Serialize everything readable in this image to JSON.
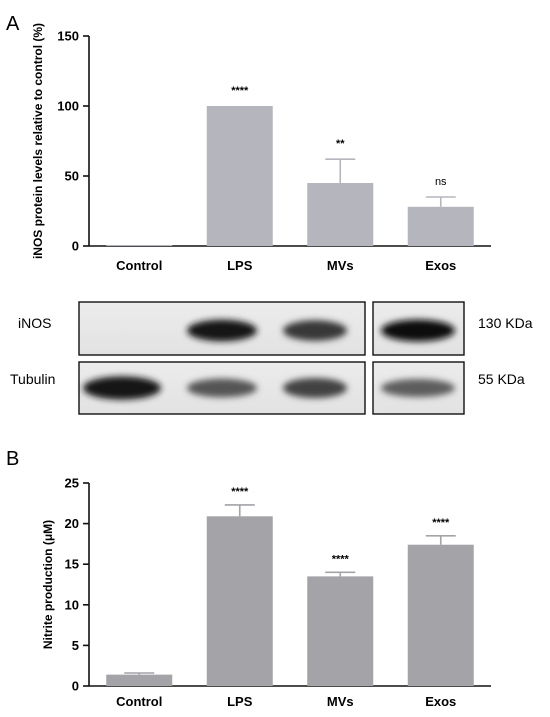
{
  "panels": [
    {
      "letter": "A"
    },
    {
      "letter": "B"
    }
  ],
  "chart_data": [
    {
      "type": "bar",
      "categories": [
        "Control",
        "LPS",
        "MVs",
        "Exos"
      ],
      "values": [
        0,
        100,
        45,
        28
      ],
      "errors": [
        0,
        0,
        17,
        7
      ],
      "annotations": [
        "",
        "****",
        "**",
        "ns"
      ],
      "ylabel": "iNOS protein levels relative to control (%)",
      "ylim": [
        0,
        150
      ],
      "yticks": [
        0,
        50,
        100,
        150
      ],
      "color": "#b5b5bd",
      "grid": false
    },
    {
      "type": "bar",
      "categories": [
        "Control",
        "LPS",
        "MVs",
        "Exos"
      ],
      "values": [
        1.4,
        20.9,
        13.5,
        17.4
      ],
      "errors": [
        0.2,
        1.4,
        0.5,
        1.1
      ],
      "annotations": [
        "",
        "****",
        "****",
        "****"
      ],
      "ylabel": "Nitrite production (μM)",
      "ylim": [
        0,
        25
      ],
      "yticks": [
        0,
        5,
        10,
        15,
        20,
        25
      ],
      "color": "#a3a3a8",
      "grid": false
    }
  ],
  "western_blot": {
    "rows": [
      {
        "label": "iNOS",
        "size": "130 KDa",
        "intensities": [
          0.02,
          0.95,
          0.78,
          1.0
        ]
      },
      {
        "label": "Tubulin",
        "size": "55 KDa",
        "intensities": [
          0.95,
          0.62,
          0.72,
          0.58
        ]
      }
    ]
  }
}
